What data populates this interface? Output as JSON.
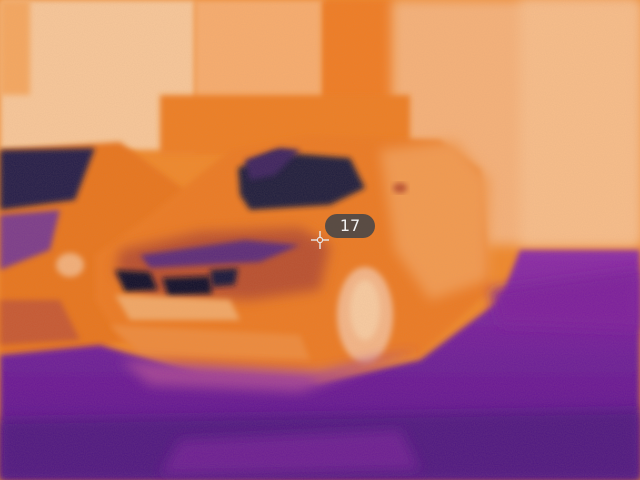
{
  "thermal_view": {
    "palette": "ironbow",
    "spot_reading": "17"
  },
  "icons": {
    "spot_marker": "crosshair-icon"
  }
}
